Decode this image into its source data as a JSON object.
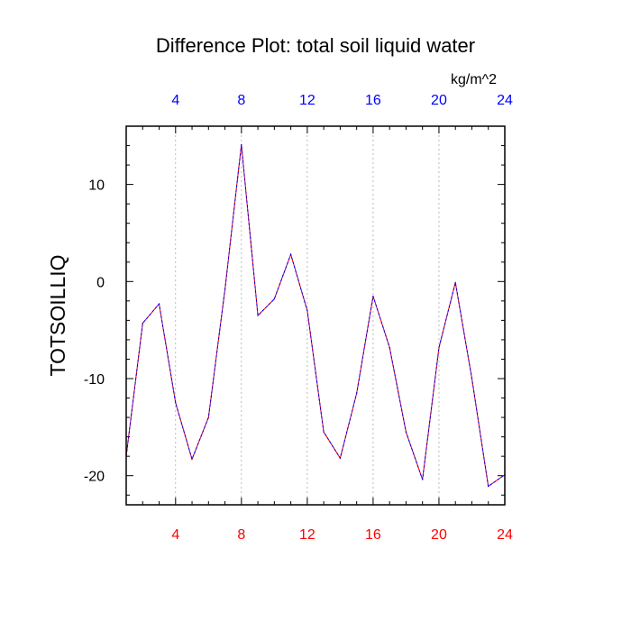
{
  "chart_data": {
    "type": "line",
    "title": "Difference Plot: total soil liquid water",
    "units": "kg/m^2",
    "ylabel": "TOTSOILLIQ",
    "xlabel": "",
    "xlim": [
      1,
      24
    ],
    "ylim": [
      -23,
      16
    ],
    "x_ticks": [
      4,
      8,
      12,
      16,
      20,
      24
    ],
    "y_ticks": [
      -20,
      -10,
      0,
      10
    ],
    "y_tick_labels": [
      "-20",
      "-10",
      "0",
      "10"
    ],
    "grid_x": true,
    "grid_y": false,
    "colors": {
      "bottom_tick_labels": "#ff0000",
      "top_tick_labels": "#0000ff",
      "series_a": "#ff0000",
      "series_b": "#0000ff"
    },
    "series": [
      {
        "x": [
          1,
          2,
          3,
          4,
          5,
          6,
          7,
          8,
          9,
          10,
          11,
          12,
          13,
          14,
          15,
          16,
          17,
          18,
          19,
          20,
          21,
          22,
          23,
          24
        ],
        "values": [
          -18.0,
          -4.3,
          -2.3,
          -12.5,
          -18.3,
          -14.0,
          -0.8,
          14.1,
          -3.5,
          -1.8,
          2.8,
          -3.0,
          -15.5,
          -18.2,
          -11.5,
          -1.5,
          -6.8,
          -15.5,
          -20.4,
          -6.8,
          -0.1,
          -10.0,
          -21.1,
          -19.9
        ]
      },
      {
        "x": [
          1,
          2,
          3,
          4,
          5,
          6,
          7,
          8,
          9,
          10,
          11,
          12,
          13,
          14,
          15,
          16,
          17,
          18,
          19,
          20,
          21,
          22,
          23,
          24
        ],
        "values": [
          -18.0,
          -4.3,
          -2.3,
          -12.5,
          -18.3,
          -14.0,
          -0.8,
          14.1,
          -3.5,
          -1.8,
          2.8,
          -3.0,
          -15.5,
          -18.2,
          -11.5,
          -1.5,
          -6.8,
          -15.5,
          -20.4,
          -6.8,
          -0.1,
          -10.0,
          -21.1,
          -19.9
        ]
      }
    ]
  }
}
